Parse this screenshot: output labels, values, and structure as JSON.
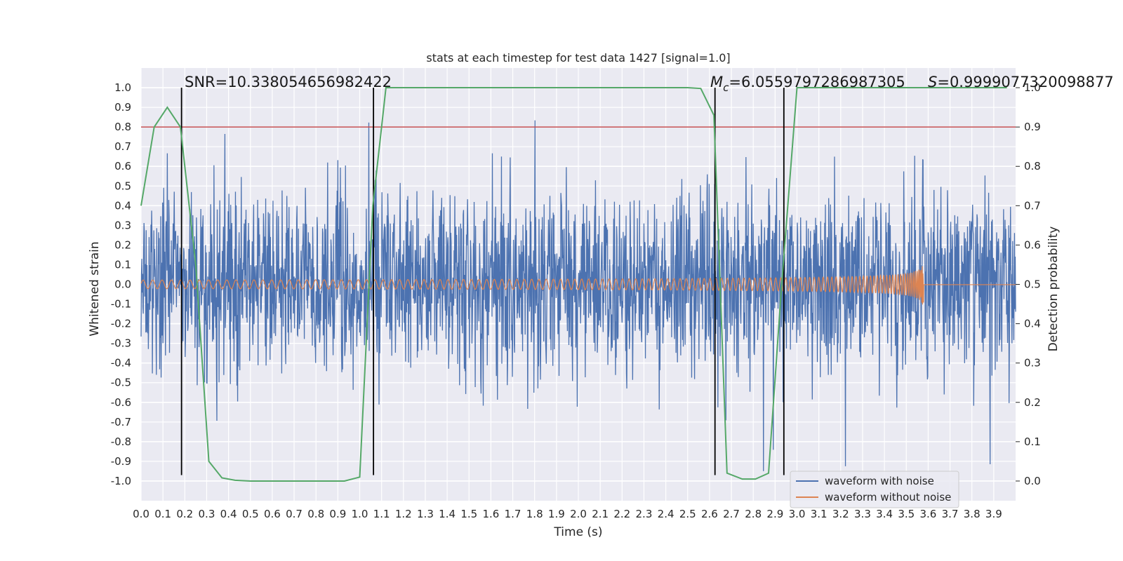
{
  "chart_data": {
    "type": "line",
    "title": "stats at each timestep for test data 1427 [signal=1.0]",
    "xlabel": "Time (s)",
    "ylabel": "Whitened strain",
    "y2label": "Detection probability",
    "xlim": [
      0.0,
      4.0
    ],
    "ylim": [
      -1.1,
      1.1
    ],
    "y2lim": [
      -0.05,
      1.05
    ],
    "xticks": [
      "0.0",
      "0.1",
      "0.2",
      "0.3",
      "0.4",
      "0.5",
      "0.6",
      "0.7",
      "0.8",
      "0.9",
      "1.0",
      "1.1",
      "1.2",
      "1.3",
      "1.4",
      "1.5",
      "1.6",
      "1.7",
      "1.8",
      "1.9",
      "2.0",
      "2.1",
      "2.2",
      "2.3",
      "2.4",
      "2.5",
      "2.6",
      "2.7",
      "2.8",
      "2.9",
      "3.0",
      "3.1",
      "3.2",
      "3.3",
      "3.4",
      "3.5",
      "3.6",
      "3.7",
      "3.8",
      "3.9"
    ],
    "yticks": [
      "1.0",
      "0.9",
      "0.8",
      "0.7",
      "0.6",
      "0.5",
      "0.4",
      "0.3",
      "0.2",
      "0.1",
      "0.0",
      "-0.1",
      "-0.2",
      "-0.3",
      "-0.4",
      "-0.5",
      "-0.6",
      "-0.7",
      "-0.8",
      "-0.9",
      "-1.0"
    ],
    "y2ticks": [
      "1.0",
      "0.9",
      "0.8",
      "0.7",
      "0.6",
      "0.5",
      "0.4",
      "0.3",
      "0.2",
      "0.1",
      "0.0"
    ],
    "series": [
      {
        "name": "waveform with noise",
        "color": "#4c72b0",
        "axis": "left",
        "description": "noisy whitened strain, amplitude roughly within ±0.6 with spikes to ±1.0",
        "approx_envelope": 0.6
      },
      {
        "name": "waveform without noise",
        "color": "#dd8452",
        "axis": "left",
        "description": "chirp signal growing in amplitude and frequency, merger near t=3.58 s",
        "t_merge": 3.58
      },
      {
        "name": "detection probability",
        "color": "#55a868",
        "axis": "right",
        "x": [
          0.0,
          0.06,
          0.12,
          0.18,
          0.25,
          0.31,
          0.37,
          0.43,
          0.5,
          0.56,
          0.62,
          0.68,
          0.75,
          0.81,
          0.87,
          0.93,
          1.0,
          1.06,
          1.12,
          1.18,
          2.5,
          2.56,
          2.62,
          2.68,
          2.75,
          2.81,
          2.87,
          2.93,
          3.0,
          3.06,
          3.96
        ],
        "y": [
          0.7,
          0.9,
          0.95,
          0.9,
          0.55,
          0.05,
          0.008,
          0.002,
          0.0,
          0.0,
          0.0,
          0.0,
          0.0,
          0.0,
          0.0,
          0.0,
          0.01,
          0.7,
          1.0,
          1.0,
          1.0,
          0.998,
          0.93,
          0.02,
          0.005,
          0.005,
          0.02,
          0.5,
          1.0,
          1.0,
          1.0
        ]
      }
    ],
    "threshold": {
      "axis": "right",
      "value": 0.9,
      "color": "#c44e52"
    },
    "event_lines": [
      0.185,
      1.063,
      2.625,
      2.94
    ],
    "annotations": [
      "SNR=10.338054656982422",
      "$M_c$=6.0559797286987305",
      "$S$=0.9999077320098877"
    ],
    "legend": {
      "placement": "lower-right",
      "entries": [
        "waveform with noise",
        "waveform without noise"
      ]
    },
    "grid": true
  },
  "labels": {
    "snr": "SNR=10.338054656982422",
    "mc_symbol": "M",
    "mc_sub": "c",
    "mc_value": "=6.0559797286987305",
    "s_symbol": "S",
    "s_value": "=0.9999077320098877",
    "legend_noise": "waveform with noise",
    "legend_clean": "waveform without noise"
  }
}
